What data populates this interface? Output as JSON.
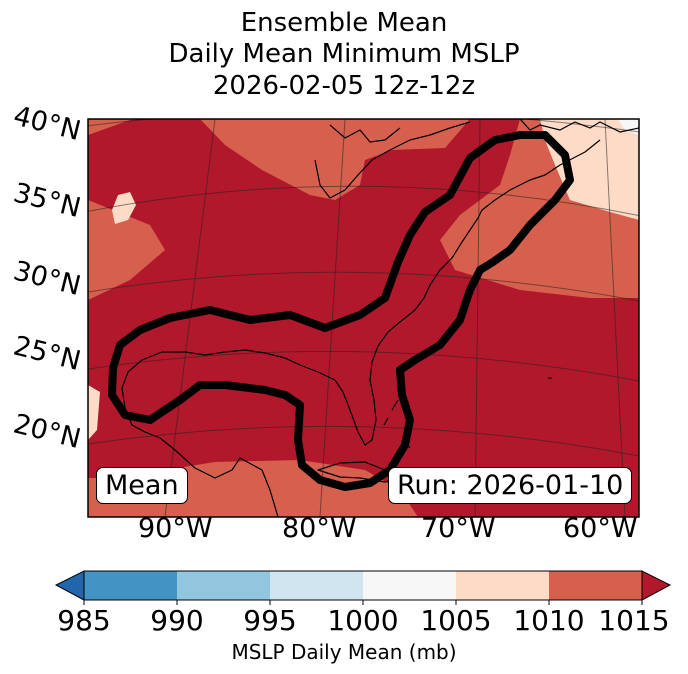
{
  "title": {
    "line1": "Ensemble Mean",
    "line2": "Daily Mean Minimum MSLP",
    "line3": "2026-02-05 12z-12z"
  },
  "map": {
    "lat_labels": [
      "40°N",
      "35°N",
      "30°N",
      "25°N",
      "20°N"
    ],
    "lon_labels": [
      "90°W",
      "80°W",
      "70°W",
      "60°W"
    ],
    "left_badge": "Mean",
    "right_badge": "Run: 2026-01-10"
  },
  "colorbar": {
    "ticks": [
      "985",
      "990",
      "995",
      "1000",
      "1005",
      "1010",
      "1015"
    ],
    "label": "MSLP Daily Mean (mb)",
    "colors": {
      "below_985": "#2166ac",
      "985_990": "#4393c3",
      "990_995": "#92c5de",
      "995_1000": "#d1e5f0",
      "1000_1005": "#f7f7f7",
      "1005_1010": "#fddbc7",
      "1010_1015": "#d6604d",
      "above_1015": "#b2182b"
    }
  }
}
